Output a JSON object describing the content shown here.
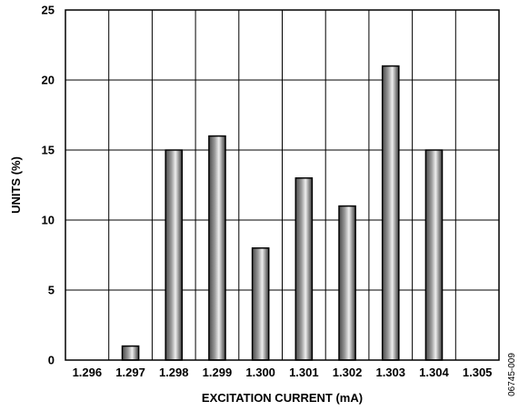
{
  "chart_data": {
    "type": "bar",
    "title": "",
    "xlabel": "EXCITATION CURRENT (mA)",
    "ylabel": "UNITS (%)",
    "categories": [
      "1.296",
      "1.297",
      "1.298",
      "1.299",
      "1.300",
      "1.301",
      "1.302",
      "1.303",
      "1.304",
      "1.305"
    ],
    "values": [
      0,
      1,
      15,
      16,
      8,
      13,
      11,
      21,
      15,
      0
    ],
    "ylim": [
      0,
      25
    ],
    "yticks": [
      "0",
      "5",
      "10",
      "15",
      "20",
      "25"
    ],
    "grid": true,
    "legend": "none",
    "bar_color": "gradient gray",
    "figure_id": "06745-009"
  }
}
